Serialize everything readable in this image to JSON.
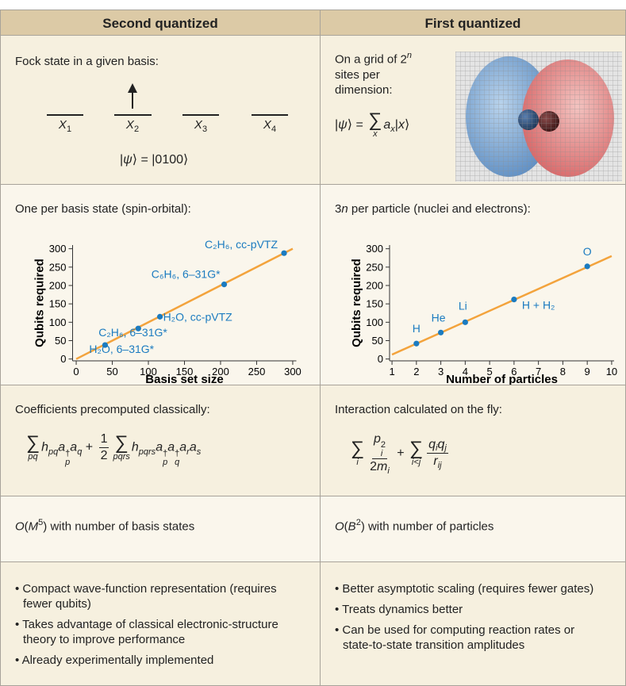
{
  "header": {
    "left": "Second quantized",
    "right": "First quantized"
  },
  "rows": [
    {
      "left": {
        "intro": "Fock state in a given basis:",
        "orbitals": [
          {
            "t": "X",
            "f": "i",
            "sub": "1"
          },
          {
            "t": "X",
            "f": "i",
            "sub": "2"
          },
          {
            "t": "X",
            "f": "i",
            "sub": "3"
          },
          {
            "t": "X",
            "f": "i",
            "sub": "4"
          }
        ],
        "formula": [
          {
            "t": "|"
          },
          {
            "t": "ψ",
            "f": "i"
          },
          {
            "t": "⟩ = |0100⟩"
          }
        ]
      },
      "right": {
        "intro": [
          {
            "t": "On a grid of 2",
            "sup": "n"
          },
          {
            "t": " sites per dimension:"
          }
        ],
        "formula": [
          {
            "t": "|"
          },
          {
            "t": "ψ",
            "f": "i"
          },
          {
            "t": "⟩ = "
          },
          {
            "sum": "∑",
            "under": "x"
          },
          {
            "t": "a",
            "f": "i",
            "sub": "x"
          },
          {
            "t": "|"
          },
          {
            "t": "x",
            "f": "i"
          },
          {
            "t": "⟩"
          }
        ]
      }
    },
    {
      "left": {
        "intro": "One per basis state (spin-orbital):"
      },
      "right": {
        "intro": [
          {
            "t": "3"
          },
          {
            "t": "n",
            "f": "i"
          },
          {
            "t": " per particle (nuclei and electrons):"
          }
        ]
      }
    },
    {
      "left": {
        "intro": "Coefficients precomputed classically:",
        "formula": [
          {
            "sum": "∑",
            "under": "pq"
          },
          {
            "t": "h",
            "f": "i",
            "sub": "pq"
          },
          {
            "t": "a",
            "f": "i",
            "sup": "†",
            "sub": "p"
          },
          {
            "t": "a",
            "f": "i",
            "sub": "q"
          },
          {
            "t": " + "
          },
          {
            "num": [
              {
                "t": "1"
              }
            ],
            "den": [
              {
                "t": "2"
              }
            ]
          },
          {
            "sum": "∑",
            "under": "pqrs"
          },
          {
            "t": "h",
            "f": "i",
            "sub": "pqrs"
          },
          {
            "t": "a",
            "f": "i",
            "sup": "†",
            "sub": "p"
          },
          {
            "t": "a",
            "f": "i",
            "sup": "†",
            "sub": "q"
          },
          {
            "t": "a",
            "f": "i",
            "sub": "r"
          },
          {
            "t": "a",
            "f": "i",
            "sub": "s"
          }
        ]
      },
      "right": {
        "intro": "Interaction calculated on the fly:",
        "formula": [
          {
            "sum": "∑",
            "under": "i"
          },
          {
            "num": [
              {
                "t": "p",
                "f": "i",
                "sup": "2",
                "sub": "i"
              }
            ],
            "den": [
              {
                "t": "2"
              },
              {
                "t": "m",
                "f": "i",
                "sub": "i"
              }
            ]
          },
          {
            "t": " + "
          },
          {
            "sum": "∑",
            "under": "i<j"
          },
          {
            "num": [
              {
                "t": "q",
                "f": "i",
                "sub": "i"
              },
              {
                "t": "q",
                "f": "i",
                "sub": "j"
              }
            ],
            "den": [
              {
                "t": "r",
                "f": "i",
                "sub": "ij"
              }
            ]
          }
        ]
      }
    },
    {
      "left": {
        "intro": [
          {
            "t": "O",
            "f": "i"
          },
          {
            "t": "("
          },
          {
            "t": "M",
            "f": "i",
            "sup": "5"
          },
          {
            "t": ") with number of basis states"
          }
        ]
      },
      "right": {
        "intro": [
          {
            "t": "O",
            "f": "i"
          },
          {
            "t": "("
          },
          {
            "t": "B",
            "f": "i",
            "sup": "2"
          },
          {
            "t": ") with number of particles"
          }
        ]
      }
    },
    {
      "left": {
        "bullets": [
          "Compact wave-function representation (requires fewer qubits)",
          "Takes advantage of classical electronic-structure theory to improve performance",
          "Already experimentally implemented"
        ]
      },
      "right": {
        "bullets": [
          "Better asymptotic scaling (requires fewer gates)",
          "Treats dynamics better",
          "Can be used for computing reaction rates or state-to-state transition amplitudes"
        ]
      }
    }
  ],
  "chart_data": [
    {
      "type": "scatter",
      "xlabel": "Basis set size",
      "ylabel": "Qubits required",
      "x": [
        40,
        86,
        116,
        205,
        288
      ],
      "values": [
        38,
        83,
        115,
        203,
        288
      ],
      "point_labels": [
        "H₂O, 6–31G*",
        "C₂H₆, 6–31G*",
        "H₂O, cc-pVTZ",
        "C₆H₆, 6–31G*",
        "C₂H₆, cc-pVTZ"
      ],
      "color": "#1b7bc0",
      "fit": {
        "x": [
          0,
          300
        ],
        "y": [
          0,
          300
        ],
        "color": "#f3a33c"
      },
      "xlim": [
        -5,
        305
      ],
      "ylim": [
        -5,
        310
      ],
      "xticks": [
        0,
        50,
        100,
        150,
        200,
        250,
        300
      ],
      "yticks": [
        0,
        50,
        100,
        150,
        200,
        250,
        300
      ]
    },
    {
      "type": "scatter",
      "xlabel": "Number of particles",
      "ylabel": "Qubits required",
      "x": [
        2,
        3,
        4,
        6,
        9
      ],
      "values": [
        42,
        72,
        100,
        162,
        252
      ],
      "point_labels": [
        "H",
        "He",
        "Li",
        "H + H₂",
        "O"
      ],
      "color": "#1b7bc0",
      "fit": {
        "x": [
          1,
          10
        ],
        "y": [
          12,
          280
        ],
        "color": "#f3a33c"
      },
      "xlim": [
        0.9,
        10.1
      ],
      "ylim": [
        -5,
        310
      ],
      "xticks": [
        1,
        2,
        3,
        4,
        5,
        6,
        7,
        8,
        9,
        10
      ],
      "yticks": [
        0,
        50,
        100,
        150,
        200,
        250,
        300
      ]
    }
  ]
}
